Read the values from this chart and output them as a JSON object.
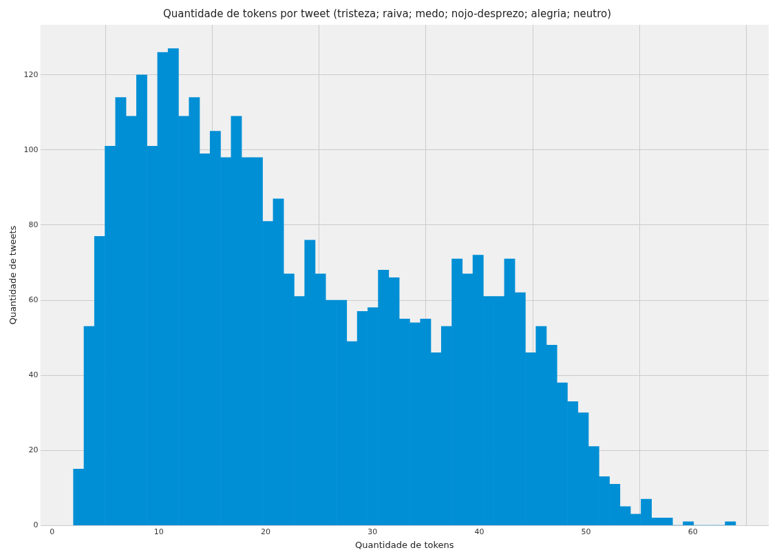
{
  "chart_data": {
    "type": "histogram",
    "title": "Quantidade de tokens por tweet (tristeza; raiva; medo; nojo-desprezo; alegria; neutro)",
    "xlabel": "Quantidade de tokens",
    "ylabel": "Quantidade de tweets",
    "bins": [
      2,
      2.98,
      3.97,
      4.95,
      5.94,
      6.92,
      7.9,
      8.89,
      9.87,
      10.86,
      11.84,
      12.83,
      13.81,
      14.79,
      15.78,
      16.76,
      17.75,
      18.73,
      19.71,
      20.7,
      21.68,
      22.67,
      23.65,
      24.63,
      25.62,
      26.6,
      27.59,
      28.57,
      29.56,
      30.54,
      31.52,
      32.51,
      33.49,
      34.48,
      35.46,
      36.44,
      37.43,
      38.41,
      39.4,
      40.38,
      41.37,
      42.35,
      43.33,
      44.32,
      45.3,
      46.29,
      47.27,
      48.25,
      49.24,
      50.22,
      51.21,
      52.19,
      53.17,
      54.16,
      55.14,
      56.13,
      57.11,
      58.1,
      59.08,
      60.06,
      61.05,
      62.03,
      63.02,
      64
    ],
    "values": [
      15,
      53,
      77,
      101,
      114,
      109,
      120,
      101,
      126,
      127,
      109,
      114,
      99,
      105,
      98,
      109,
      98,
      98,
      81,
      87,
      67,
      61,
      76,
      67,
      60,
      60,
      49,
      57,
      58,
      68,
      66,
      55,
      54,
      55,
      46,
      53,
      71,
      67,
      72,
      61,
      61,
      71,
      62,
      46,
      53,
      48,
      38,
      33,
      30,
      21,
      13,
      11,
      5,
      3,
      7,
      2,
      2,
      0,
      1,
      0,
      0,
      0,
      1
    ],
    "color": "#008fd5",
    "xlim": [
      -1.1,
      67.1
    ],
    "xticks": [
      0,
      10,
      20,
      30,
      40,
      50,
      60
    ],
    "ylim": [
      0,
      133.35
    ],
    "yticks": [
      0,
      20,
      40,
      60,
      80,
      100,
      120
    ],
    "grid": true
  }
}
